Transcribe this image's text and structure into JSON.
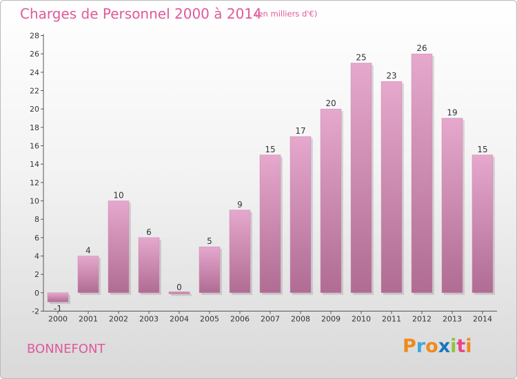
{
  "chart": {
    "title": "Charges de Personnel 2000 à 2014",
    "unit_note": "(en milliers d'€)",
    "commune": "BONNEFONT"
  },
  "logo": {
    "letters": [
      "P",
      "r",
      "o",
      "x",
      "i",
      "t",
      "i"
    ],
    "colors": [
      "#f08a1c",
      "#3ea9dc",
      "#f08a1c",
      "#1b75bc",
      "#8dc63f",
      "#e8468b",
      "#f08a1c"
    ]
  },
  "chart_data": {
    "type": "bar",
    "title": "Charges de Personnel 2000 à 2014",
    "subtitle": "(en milliers d'€)",
    "xlabel": "",
    "ylabel": "",
    "categories": [
      "2000",
      "2001",
      "2002",
      "2003",
      "2004",
      "2005",
      "2006",
      "2007",
      "2008",
      "2009",
      "2010",
      "2011",
      "2012",
      "2013",
      "2014"
    ],
    "values": [
      -1,
      4,
      10,
      6,
      0,
      5,
      9,
      15,
      17,
      20,
      25,
      23,
      26,
      19,
      15
    ],
    "value_labels": [
      "-1",
      "4",
      "10",
      "6",
      "0",
      "5",
      "9",
      "15",
      "17",
      "20",
      "25",
      "23",
      "26",
      "19",
      "15"
    ],
    "ylim": [
      -2,
      28
    ],
    "yticks": [
      -2,
      0,
      2,
      4,
      6,
      8,
      10,
      12,
      14,
      16,
      18,
      20,
      22,
      24,
      26,
      28
    ],
    "grid": false,
    "bar_color_top": "#e6a8cd",
    "bar_color_bottom": "#b06c93"
  }
}
